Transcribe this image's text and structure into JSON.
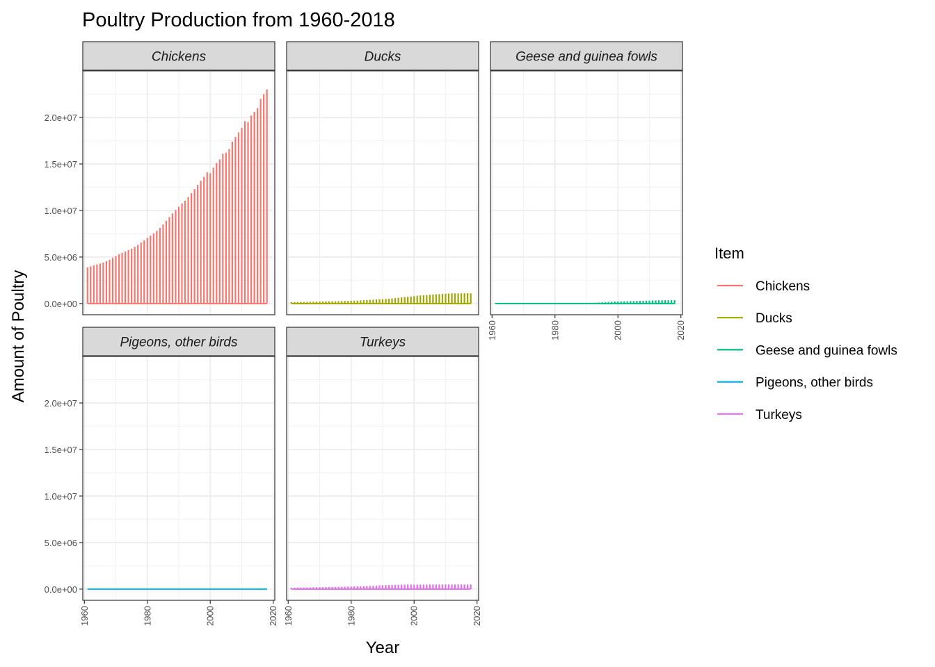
{
  "chart_data": {
    "type": "line",
    "title": "Poultry Production from 1960-2018",
    "xlabel": "Year",
    "ylabel": "Amount of Poultry",
    "xlim": [
      1959.5,
      2020.5
    ],
    "ylim": [
      -1200000,
      25000000
    ],
    "x_ticks": [
      1960,
      1980,
      2000,
      2020
    ],
    "y_ticks": [
      0,
      5000000,
      10000000,
      15000000,
      20000000
    ],
    "y_tick_labels": [
      "0.0e+00",
      "5.0e+06",
      "1.0e+07",
      "1.5e+07",
      "2.0e+07"
    ],
    "x_tick_labels": [
      "1960",
      "1980",
      "2000",
      "2020"
    ],
    "grid": true,
    "facet_layout": "wrap",
    "legend": {
      "title": "Item",
      "position": "right",
      "entries": [
        "Chickens",
        "Ducks",
        "Geese and guinea fowls",
        "Pigeons, other birds",
        "Turkeys"
      ]
    },
    "x": [
      1961,
      1962,
      1963,
      1964,
      1965,
      1966,
      1967,
      1968,
      1969,
      1970,
      1971,
      1972,
      1973,
      1974,
      1975,
      1976,
      1977,
      1978,
      1979,
      1980,
      1981,
      1982,
      1983,
      1984,
      1985,
      1986,
      1987,
      1988,
      1989,
      1990,
      1991,
      1992,
      1993,
      1994,
      1995,
      1996,
      1997,
      1998,
      1999,
      2000,
      2001,
      2002,
      2003,
      2004,
      2005,
      2006,
      2007,
      2008,
      2009,
      2010,
      2011,
      2012,
      2013,
      2014,
      2015,
      2016,
      2017,
      2018
    ],
    "series": [
      {
        "name": "Chickens",
        "color": "#F8766D",
        "panel": "Chickens",
        "values": [
          3900000,
          4000000,
          4100000,
          4200000,
          4300000,
          4400000,
          4550000,
          4700000,
          4900000,
          5100000,
          5300000,
          5450000,
          5600000,
          5750000,
          5900000,
          6100000,
          6300000,
          6550000,
          6800000,
          7050000,
          7300000,
          7550000,
          7800000,
          8150000,
          8500000,
          8900000,
          9300000,
          9700000,
          10050000,
          10400000,
          10750000,
          11050000,
          11450000,
          11850000,
          12300000,
          12750000,
          13200000,
          13600000,
          14100000,
          14000000,
          14600000,
          15100000,
          15500000,
          16100000,
          16200000,
          16600000,
          17400000,
          17900000,
          18400000,
          18900000,
          19600000,
          19500000,
          20200000,
          20600000,
          21000000,
          22000000,
          22500000,
          23000000
        ]
      },
      {
        "name": "Ducks",
        "color": "#A3A500",
        "panel": "Ducks",
        "values": [
          150000,
          155000,
          160000,
          170000,
          175000,
          180000,
          190000,
          200000,
          210000,
          215000,
          220000,
          230000,
          240000,
          245000,
          250000,
          260000,
          270000,
          280000,
          290000,
          300000,
          310000,
          320000,
          340000,
          360000,
          380000,
          400000,
          420000,
          440000,
          460000,
          480000,
          500000,
          520000,
          550000,
          580000,
          620000,
          660000,
          700000,
          730000,
          760000,
          800000,
          850000,
          880000,
          900000,
          920000,
          950000,
          980000,
          1000000,
          1020000,
          1040000,
          1060000,
          1080000,
          1100000,
          1100000,
          1090000,
          1100000,
          1110000,
          1120000,
          1100000
        ]
      },
      {
        "name": "Geese and guinea fowls",
        "color": "#00BF7D",
        "panel": "Geese and guinea fowls",
        "values": [
          20000,
          20000,
          21000,
          22000,
          23000,
          24000,
          25000,
          26000,
          27000,
          28000,
          29000,
          30000,
          31000,
          32000,
          33000,
          34000,
          35000,
          36000,
          37000,
          38000,
          40000,
          42000,
          44000,
          46000,
          48000,
          50000,
          52000,
          55000,
          58000,
          62000,
          66000,
          70000,
          90000,
          110000,
          130000,
          150000,
          170000,
          190000,
          210000,
          220000,
          230000,
          240000,
          250000,
          260000,
          270000,
          280000,
          290000,
          300000,
          310000,
          320000,
          330000,
          340000,
          345000,
          350000,
          355000,
          360000,
          360000,
          360000
        ]
      },
      {
        "name": "Pigeons, other birds",
        "color": "#00B0F6",
        "panel": "Pigeons, other birds",
        "values": [
          8000,
          8000,
          8000,
          8000,
          8500,
          8500,
          8500,
          9000,
          9000,
          9000,
          9500,
          9500,
          10000,
          10000,
          10000,
          10500,
          10500,
          11000,
          11000,
          11000,
          11500,
          11500,
          12000,
          12000,
          12000,
          12500,
          12500,
          13000,
          13000,
          13500,
          13500,
          14000,
          14000,
          14500,
          14500,
          15000,
          15000,
          15500,
          15500,
          16000,
          16000,
          16500,
          16500,
          17000,
          17000,
          17500,
          17500,
          18000,
          18000,
          18500,
          18500,
          19000,
          19000,
          19500,
          19500,
          20000,
          20000,
          20000
        ]
      },
      {
        "name": "Turkeys",
        "color": "#E76BF3",
        "panel": "Turkeys",
        "values": [
          150000,
          155000,
          160000,
          165000,
          170000,
          175000,
          180000,
          190000,
          200000,
          205000,
          210000,
          215000,
          220000,
          225000,
          230000,
          240000,
          250000,
          260000,
          270000,
          280000,
          290000,
          300000,
          310000,
          320000,
          330000,
          340000,
          360000,
          380000,
          400000,
          420000,
          430000,
          440000,
          450000,
          460000,
          470000,
          480000,
          480000,
          490000,
          490000,
          490000,
          490000,
          490000,
          490000,
          490000,
          500000,
          500000,
          500000,
          500000,
          500000,
          500000,
          500000,
          500000,
          500000,
          500000,
          500000,
          500000,
          500000,
          500000
        ]
      }
    ]
  }
}
